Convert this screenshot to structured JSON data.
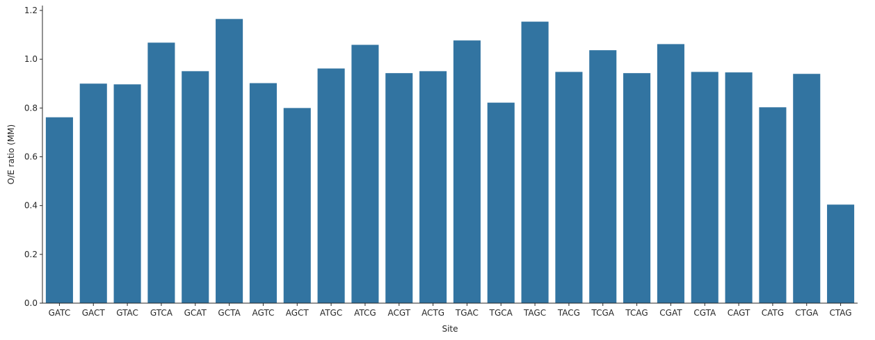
{
  "chart_data": {
    "type": "bar",
    "xlabel": "Site",
    "ylabel": "O/E ratio (MM)",
    "ylim": [
      0,
      1.22
    ],
    "yticks": [
      "0.0",
      "0.2",
      "0.4",
      "0.6",
      "0.8",
      "1.0",
      "1.2"
    ],
    "categories": [
      "GATC",
      "GACT",
      "GTAC",
      "GTCA",
      "GCAT",
      "GCTA",
      "AGTC",
      "AGCT",
      "ATGC",
      "ATCG",
      "ACGT",
      "ACTG",
      "TGAC",
      "TGCA",
      "TAGC",
      "TACG",
      "TCGA",
      "TCAG",
      "CGAT",
      "CGTA",
      "CAGT",
      "CATG",
      "CTGA",
      "CTAG"
    ],
    "values": [
      0.762,
      0.9,
      0.897,
      1.068,
      0.951,
      1.165,
      0.902,
      0.8,
      0.962,
      1.059,
      0.943,
      0.951,
      1.077,
      0.822,
      1.154,
      0.948,
      1.037,
      0.943,
      1.062,
      0.948,
      0.946,
      0.803,
      0.94,
      0.404
    ],
    "bar_color": "#3274a1",
    "grid": false,
    "legend": "none"
  }
}
